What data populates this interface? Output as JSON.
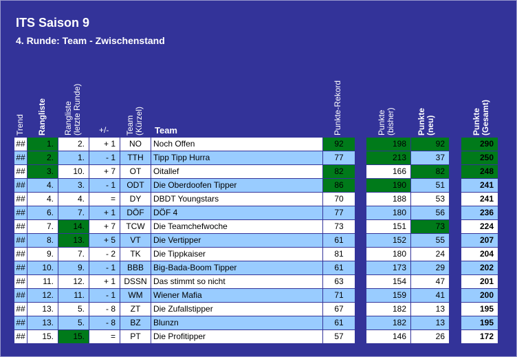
{
  "title": "ITS Saison 9",
  "subtitle": "4. Runde: Team - Zwischenstand",
  "headers": {
    "trend": "Trend",
    "rangliste": "Rangliste",
    "rangliste_letzte": "Rangliste\n(letzte Runde)",
    "plusminus": "+/-",
    "team_kuerzel": "Team\n(Kürzel)",
    "team": "Team",
    "punkte_rekord": "Punkte-Rekord",
    "punkte_bisher": "Punkte\n(bisher)",
    "punkte_neu": "Punkte\n(neu)",
    "punkte_gesamt": "Punkte\n(Gesamt)"
  },
  "colors": {
    "background": "#333399",
    "row_white": "#ffffff",
    "row_blue": "#99ccff",
    "highlight_green": "#007a1a"
  },
  "rows": [
    {
      "trend": "##",
      "rank": "1.",
      "prev": "2.",
      "diff": "+ 1",
      "short": "NO",
      "team": "Noch Offen",
      "rekord": "92",
      "bisher": "198",
      "neu": "92",
      "gesamt": "290",
      "g_rank": true,
      "g_prev": false,
      "g_rekord": true,
      "g_bisher": true,
      "g_neu": true,
      "g_gesamt": true
    },
    {
      "trend": "##",
      "rank": "2.",
      "prev": "1.",
      "diff": "- 1",
      "short": "TTH",
      "team": "Tipp Tipp Hurra",
      "rekord": "77",
      "bisher": "213",
      "neu": "37",
      "gesamt": "250",
      "g_rank": true,
      "g_prev": false,
      "g_rekord": false,
      "g_bisher": true,
      "g_neu": false,
      "g_gesamt": true
    },
    {
      "trend": "##",
      "rank": "3.",
      "prev": "10.",
      "diff": "+ 7",
      "short": "OT",
      "team": "Oitallef",
      "rekord": "82",
      "bisher": "166",
      "neu": "82",
      "gesamt": "248",
      "g_rank": true,
      "g_prev": false,
      "g_rekord": true,
      "g_bisher": false,
      "g_neu": true,
      "g_gesamt": true
    },
    {
      "trend": "##",
      "rank": "4.",
      "prev": "3.",
      "diff": "- 1",
      "short": "ODT",
      "team": "Die Oberdoofen Tipper",
      "rekord": "86",
      "bisher": "190",
      "neu": "51",
      "gesamt": "241",
      "g_rank": false,
      "g_prev": false,
      "g_rekord": true,
      "g_bisher": true,
      "g_neu": false,
      "g_gesamt": false
    },
    {
      "trend": "##",
      "rank": "4.",
      "prev": "4.",
      "diff": "=",
      "short": "DY",
      "team": "DBDT Youngstars",
      "rekord": "70",
      "bisher": "188",
      "neu": "53",
      "gesamt": "241",
      "g_rank": false,
      "g_prev": false,
      "g_rekord": false,
      "g_bisher": false,
      "g_neu": false,
      "g_gesamt": false
    },
    {
      "trend": "##",
      "rank": "6.",
      "prev": "7.",
      "diff": "+ 1",
      "short": "DÖF",
      "team": "DÖF 4",
      "rekord": "77",
      "bisher": "180",
      "neu": "56",
      "gesamt": "236",
      "g_rank": false,
      "g_prev": false,
      "g_rekord": false,
      "g_bisher": false,
      "g_neu": false,
      "g_gesamt": false
    },
    {
      "trend": "##",
      "rank": "7.",
      "prev": "14.",
      "diff": "+ 7",
      "short": "TCW",
      "team": "Die Teamchefwoche",
      "rekord": "73",
      "bisher": "151",
      "neu": "73",
      "gesamt": "224",
      "g_rank": false,
      "g_prev": true,
      "g_rekord": false,
      "g_bisher": false,
      "g_neu": true,
      "g_gesamt": false
    },
    {
      "trend": "##",
      "rank": "8.",
      "prev": "13.",
      "diff": "+ 5",
      "short": "VT",
      "team": "Die Vertipper",
      "rekord": "61",
      "bisher": "152",
      "neu": "55",
      "gesamt": "207",
      "g_rank": false,
      "g_prev": true,
      "g_rekord": false,
      "g_bisher": false,
      "g_neu": false,
      "g_gesamt": false
    },
    {
      "trend": "##",
      "rank": "9.",
      "prev": "7.",
      "diff": "- 2",
      "short": "TK",
      "team": "Die Tippkaiser",
      "rekord": "81",
      "bisher": "180",
      "neu": "24",
      "gesamt": "204",
      "g_rank": false,
      "g_prev": false,
      "g_rekord": false,
      "g_bisher": false,
      "g_neu": false,
      "g_gesamt": false
    },
    {
      "trend": "##",
      "rank": "10.",
      "prev": "9.",
      "diff": "- 1",
      "short": "BBB",
      "team": "Big-Bada-Boom Tipper",
      "rekord": "61",
      "bisher": "173",
      "neu": "29",
      "gesamt": "202",
      "g_rank": false,
      "g_prev": false,
      "g_rekord": false,
      "g_bisher": false,
      "g_neu": false,
      "g_gesamt": false
    },
    {
      "trend": "##",
      "rank": "11.",
      "prev": "12.",
      "diff": "+ 1",
      "short": "DSSN",
      "team": "Das stimmt so nicht",
      "rekord": "63",
      "bisher": "154",
      "neu": "47",
      "gesamt": "201",
      "g_rank": false,
      "g_prev": false,
      "g_rekord": false,
      "g_bisher": false,
      "g_neu": false,
      "g_gesamt": false
    },
    {
      "trend": "##",
      "rank": "12.",
      "prev": "11.",
      "diff": "- 1",
      "short": "WM",
      "team": "Wiener Mafia",
      "rekord": "71",
      "bisher": "159",
      "neu": "41",
      "gesamt": "200",
      "g_rank": false,
      "g_prev": false,
      "g_rekord": false,
      "g_bisher": false,
      "g_neu": false,
      "g_gesamt": false
    },
    {
      "trend": "##",
      "rank": "13.",
      "prev": "5.",
      "diff": "- 8",
      "short": "ZT",
      "team": "Die Zufallstipper",
      "rekord": "67",
      "bisher": "182",
      "neu": "13",
      "gesamt": "195",
      "g_rank": false,
      "g_prev": false,
      "g_rekord": false,
      "g_bisher": false,
      "g_neu": false,
      "g_gesamt": false
    },
    {
      "trend": "##",
      "rank": "13.",
      "prev": "5.",
      "diff": "- 8",
      "short": "BZ",
      "team": "Blunzn",
      "rekord": "61",
      "bisher": "182",
      "neu": "13",
      "gesamt": "195",
      "g_rank": false,
      "g_prev": false,
      "g_rekord": false,
      "g_bisher": false,
      "g_neu": false,
      "g_gesamt": false
    },
    {
      "trend": "##",
      "rank": "15.",
      "prev": "15.",
      "diff": "=",
      "short": "PT",
      "team": "Die Profitipper",
      "rekord": "57",
      "bisher": "146",
      "neu": "26",
      "gesamt": "172",
      "g_rank": false,
      "g_prev": true,
      "g_rekord": false,
      "g_bisher": false,
      "g_neu": false,
      "g_gesamt": false
    }
  ]
}
